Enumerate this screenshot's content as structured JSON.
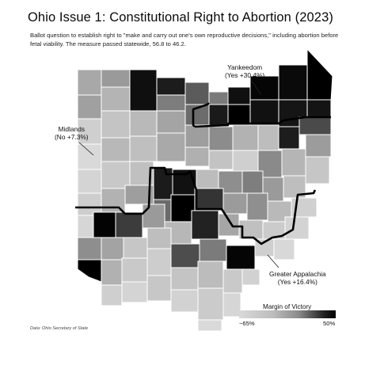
{
  "title": "Ohio Issue 1: Constitutional Right to Abortion (2023)",
  "subtitle": "Ballot question to establish right to \"make and carry out one's own reproductive decisions,\" including abortion before fetal viability. The measure passed statewide, 56.8 to 46.2.",
  "regions": [
    {
      "name": "Yankeedom",
      "result": "(Yes +30.4%)"
    },
    {
      "name": "Midlands",
      "result": "(No +7.3%)"
    },
    {
      "name": "Greater Appalachia",
      "result": "(Yes +16.4%)"
    }
  ],
  "legend": {
    "title": "Margin of Victory",
    "min_label": "−65%",
    "max_label": "50%",
    "colors": [
      "#d9d9d9",
      "#8a8a8a",
      "#000000"
    ]
  },
  "source": "Data: Ohio Secretary of State"
}
